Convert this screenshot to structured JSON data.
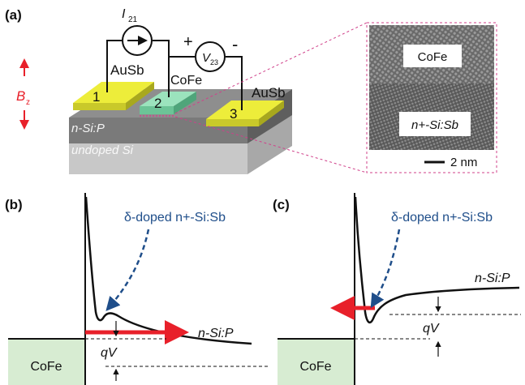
{
  "panels": {
    "a": "(a)",
    "b": "(b)",
    "c": "(c)"
  },
  "device": {
    "current_label": "I",
    "current_sub": "21",
    "voltage_label": "V",
    "voltage_sub": "23",
    "plus": "+",
    "minus": "-",
    "field_label": "B",
    "field_sub": "z",
    "contact_left_material": "AuSb",
    "contact_right_material": "AuSb",
    "middle_material": "CoFe",
    "contact_1": "1",
    "contact_2": "2",
    "contact_3": "3",
    "layer_top": "n-Si:P",
    "layer_bottom": "undoped Si"
  },
  "tem": {
    "top_label": "CoFe",
    "bottom_label": "n+-Si:Sb",
    "scale_bar": "2 nm"
  },
  "band_b": {
    "doping_label": "δ-doped n+-Si:Sb",
    "metal_label": "CoFe",
    "semi_label": "n-Si:P",
    "voltage_label": "qV"
  },
  "band_c": {
    "doping_label": "δ-doped n+-Si:Sb",
    "metal_label": "CoFe",
    "semi_label": "n-Si:P",
    "voltage_label": "qV"
  },
  "colors": {
    "contact_yellow": "#e6e62a",
    "cofe_green": "#7fd6a8",
    "metal_green": "#d7ecd2",
    "arrow_red": "#e8202a",
    "arrow_blue": "#1f4e8a",
    "tem_border": "#d0408a"
  }
}
